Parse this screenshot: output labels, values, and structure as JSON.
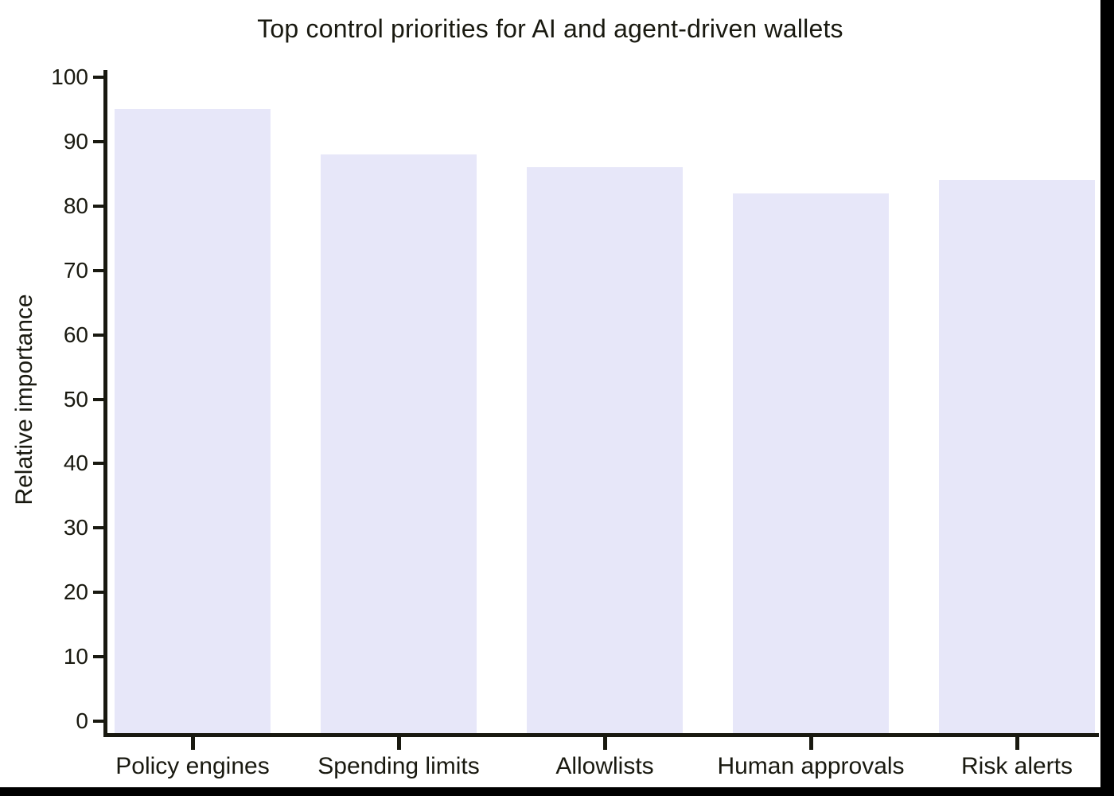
{
  "chart_data": {
    "type": "bar",
    "title": "Top control priorities for AI and agent-driven wallets",
    "ylabel": "Relative importance",
    "xlabel": "",
    "categories": [
      "Policy engines",
      "Spending limits",
      "Allowlists",
      "Human approvals",
      "Risk alerts"
    ],
    "values": [
      95,
      88,
      86,
      82,
      84
    ],
    "ylim": [
      0,
      100
    ],
    "yticks": [
      0,
      10,
      20,
      30,
      40,
      50,
      60,
      70,
      80,
      90,
      100
    ],
    "grid": false,
    "legend": false,
    "colors": {
      "bar_fill": "#e7e7f9",
      "axis": "#191910",
      "text": "#191910",
      "background": "#ffffff",
      "window_edge": "#000000"
    }
  }
}
